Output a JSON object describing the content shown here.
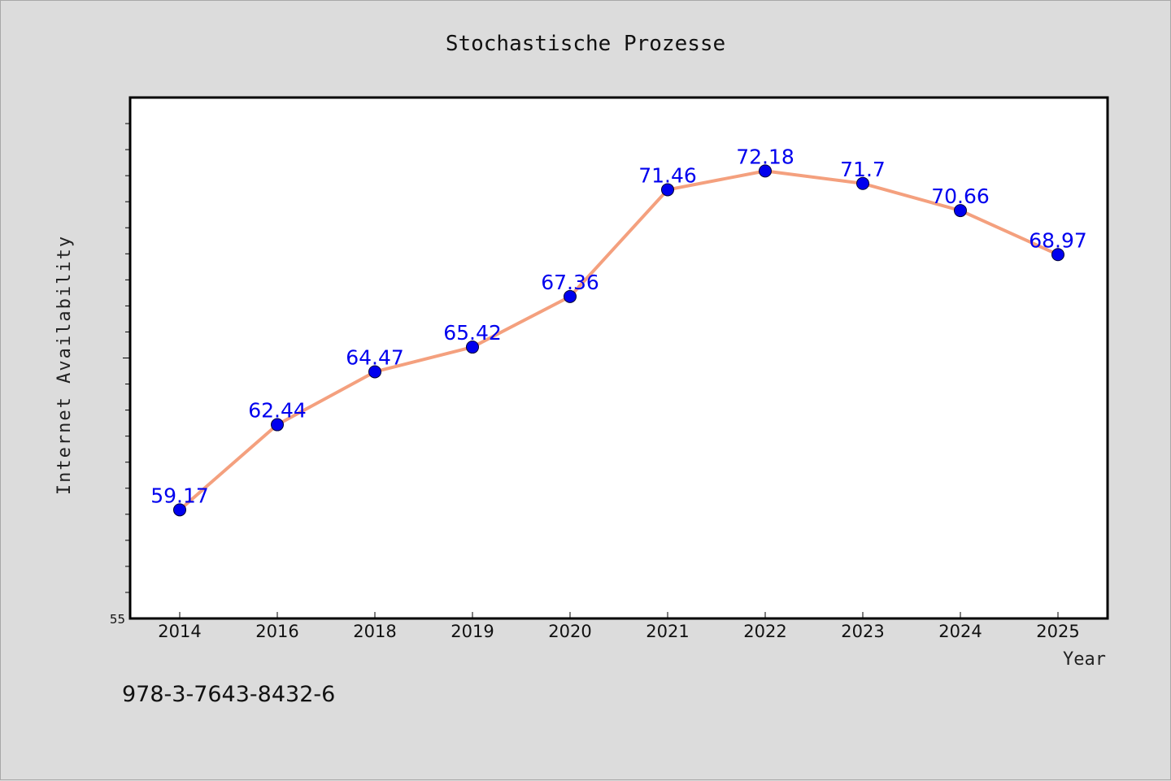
{
  "chart_data": {
    "type": "line",
    "title": "Stochastische Prozesse",
    "xlabel": "Year",
    "ylabel": "Internet Availability",
    "categories": [
      "2014",
      "2016",
      "2018",
      "2019",
      "2020",
      "2021",
      "2022",
      "2023",
      "2024",
      "2025"
    ],
    "series": [
      {
        "values": [
          59.17,
          62.44,
          64.47,
          65.42,
          67.36,
          71.46,
          72.18,
          71.7,
          70.66,
          68.97
        ],
        "data_labels": [
          "59.17",
          "62.44",
          "64.47",
          "65.42",
          "67.36",
          "71.46",
          "72.18",
          "71.7",
          "70.66",
          "68.97"
        ],
        "line_color": "#f4a07e",
        "marker_color": "#0000ee",
        "label_color": "#0000ee"
      }
    ],
    "ylim": [
      55,
      75
    ],
    "y_tick_labels": [
      "55"
    ],
    "grid": false,
    "legend": "none"
  },
  "footer": {
    "isbn": "978-3-7643-8432-6"
  },
  "colors": {
    "background": "#dcdcdc",
    "plot_background": "#ffffff",
    "axis": "#000000"
  }
}
